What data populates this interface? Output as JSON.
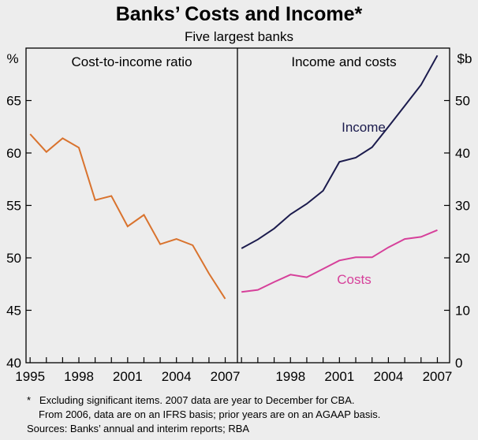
{
  "title": "Banks’ Costs and Income*",
  "subtitle": "Five largest banks",
  "colors": {
    "ratio": "#d9732e",
    "income": "#1b1b4d",
    "costs": "#d6409a",
    "frame": "#000000",
    "background": "#ededed"
  },
  "notes": [
    "*   Excluding significant items. 2007 data are year to December for CBA.",
    "From 2006, data are on an IFRS basis; prior years are on an AGAAP basis.",
    "Sources: Banks’ annual and interim reports; RBA"
  ],
  "chart_data": [
    {
      "type": "line",
      "title": "Cost-to-income ratio",
      "unit": "%",
      "ylim": [
        40,
        70
      ],
      "yticks": [
        40,
        45,
        50,
        55,
        60,
        65
      ],
      "xlim": [
        1994.75,
        2007.75
      ],
      "xtick_labels": [
        "1995",
        "1998",
        "2001",
        "2004",
        "2007"
      ],
      "xtick_values": [
        1995,
        1998,
        2001,
        2004,
        2007
      ],
      "series": [
        {
          "name": "Cost-to-income ratio",
          "x": [
            1995,
            1996,
            1997,
            1998,
            1999,
            2000,
            2001,
            2002,
            2003,
            2004,
            2005,
            2006,
            2007
          ],
          "values": [
            61.8,
            60.1,
            61.4,
            60.5,
            55.5,
            55.9,
            53.0,
            54.1,
            51.3,
            51.8,
            51.2,
            48.5,
            46.1
          ]
        }
      ]
    },
    {
      "type": "line",
      "title": "Income and costs",
      "unit": "$b",
      "ylim": [
        0,
        60
      ],
      "yticks": [
        0,
        10,
        20,
        30,
        40,
        50
      ],
      "xlim": [
        1994.75,
        2007.75
      ],
      "xtick_labels": [
        "1998",
        "2001",
        "2004",
        "2007"
      ],
      "xtick_values": [
        1998,
        2001,
        2004,
        2007
      ],
      "series": [
        {
          "name": "Income",
          "label": "Income",
          "x": [
            1995,
            1996,
            1997,
            1998,
            1999,
            2000,
            2001,
            2002,
            2003,
            2004,
            2005,
            2006,
            2007
          ],
          "values": [
            21.8,
            23.5,
            25.6,
            28.3,
            30.3,
            32.8,
            38.3,
            39.1,
            41.1,
            45.0,
            49.0,
            53.0,
            58.6
          ]
        },
        {
          "name": "Costs",
          "label": "Costs",
          "x": [
            1995,
            1996,
            1997,
            1998,
            1999,
            2000,
            2001,
            2002,
            2003,
            2004,
            2005,
            2006,
            2007
          ],
          "values": [
            13.5,
            13.9,
            15.4,
            16.8,
            16.3,
            17.9,
            19.5,
            20.1,
            20.1,
            22.0,
            23.6,
            24.0,
            25.3
          ]
        }
      ]
    }
  ]
}
